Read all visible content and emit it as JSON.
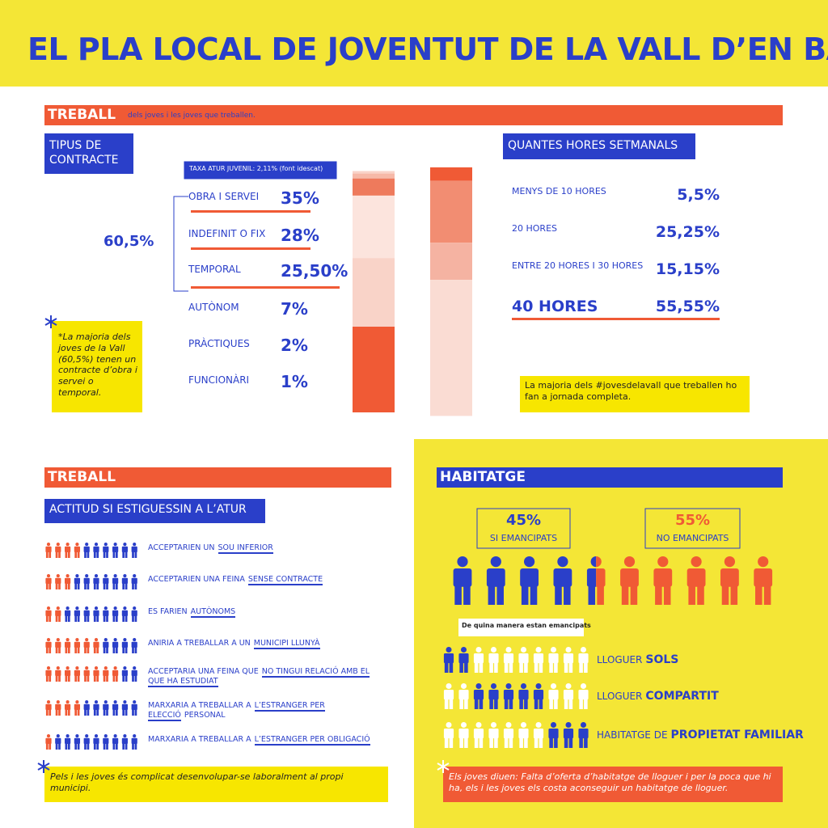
{
  "header": {
    "title": "EL PLA LOCAL DE JOVENTUT DE LA VALL D’EN BAS"
  },
  "treball": {
    "heading": "TREBALL",
    "subheading": "dels joves i les joves que treballen.",
    "contract": {
      "title": "TIPUS DE CONTRACTE",
      "badge": "TAXA ATUR JUVENIL: 2,11% (font idescat)",
      "group_label": "60,5%",
      "items": [
        {
          "name": "OBRA I SERVEI",
          "label": "35%",
          "value": 35,
          "color": "#f05a35"
        },
        {
          "name": "INDEFINIT O FIX",
          "label": "28%",
          "value": 28,
          "color": "#f9d3c8"
        },
        {
          "name": "TEMPORAL",
          "label": "25,50%",
          "value": 25.5,
          "color": "#fce4dd"
        },
        {
          "name": "AUTÒNOM",
          "label": "7%",
          "value": 7,
          "color": "#ee7a5c"
        },
        {
          "name": "PRÀCTIQUES",
          "label": "2%",
          "value": 2,
          "color": "#f6b9a8"
        },
        {
          "name": "FUNCIONÀRI",
          "label": "1%",
          "value": 1,
          "color": "#f9d3c8"
        }
      ],
      "note": "*La majoria dels joves de la Vall (60,5%) tenen un contracte d’obra i servei o temporal."
    },
    "hours": {
      "title": "QUANTES HORES SETMANALS",
      "items": [
        {
          "name": "MENYS DE 10 HORES",
          "label": "5,5%",
          "value": 5.5,
          "color": "#f05a35"
        },
        {
          "name": "20 HORES",
          "label": "25,25%",
          "value": 25.25,
          "color": "#f28d72"
        },
        {
          "name": "ENTRE 20 HORES I 30 HORES",
          "label": "15,15%",
          "value": 15.15,
          "color": "#f5b3a2"
        },
        {
          "name": "40 HORES",
          "label": "55,55%",
          "value": 55.55,
          "color": "#fadcd3"
        }
      ],
      "note": "La majoria dels #jovesdelavall que treballen ho fan a jornada completa."
    }
  },
  "atur": {
    "heading": "TREBALL",
    "title": "ACTITUD SI ESTIGUESSIN A L’ATUR",
    "rows": [
      {
        "text": "ACCEPTARIEN UN",
        "highlight": "SOU INFERIOR",
        "red_icons": 4
      },
      {
        "text": "ACCEPTARIEN UNA FEINA",
        "highlight": "SENSE CONTRACTE",
        "red_icons": 3
      },
      {
        "text": "ES FARIEN",
        "highlight": "AUTÒNOMS",
        "red_icons": 2
      },
      {
        "text": "ANIRIA A TREBALLAR A UN",
        "highlight": "MUNICIPI LLUNYÀ",
        "red_icons": 6
      },
      {
        "text": "ACCEPTARIA UNA FEINA QUE",
        "highlight": "NO TINGUI RELACIÓ AMB EL QUE HA ESTUDIAT",
        "red_icons": 8
      },
      {
        "text": "MARXARIA A TREBALLAR A",
        "highlight": "L’ESTRANGER PER ELECCIÓ",
        "suffix": "PERSONAL",
        "red_icons": 4
      },
      {
        "text": "MARXARIA A TREBALLAR A",
        "highlight": "L’ESTRANGER PER OBLIGACIÓ",
        "red_icons": 1
      }
    ],
    "note": "Pels i les joves és complicat desenvolupar-se laboralment al propi municipi."
  },
  "habitatge": {
    "heading": "HABITATGE",
    "emancipats": {
      "label": "45%",
      "value": 45,
      "caption": "SI EMANCIPATS"
    },
    "no_emancipats": {
      "label": "55%",
      "value": 55,
      "caption": "NO EMANCIPATS"
    },
    "ways_title": "De quina manera estan emancipats",
    "ways": [
      {
        "prefix": "LLOGUER",
        "bold": "SOLS",
        "blue_icons": 2
      },
      {
        "prefix": "LLOGUER",
        "bold": "COMPARTIT",
        "blue_icons": 5
      },
      {
        "prefix": "HABITATGE DE",
        "bold": "PROPIETAT FAMILIAR",
        "blue_icons": 3
      }
    ],
    "note": "Els joves diuen: Falta d’oferta d’habitatge de lloguer i per la poca que hi ha, els i les joves els costa aconseguir un habitatge de lloguer."
  }
}
